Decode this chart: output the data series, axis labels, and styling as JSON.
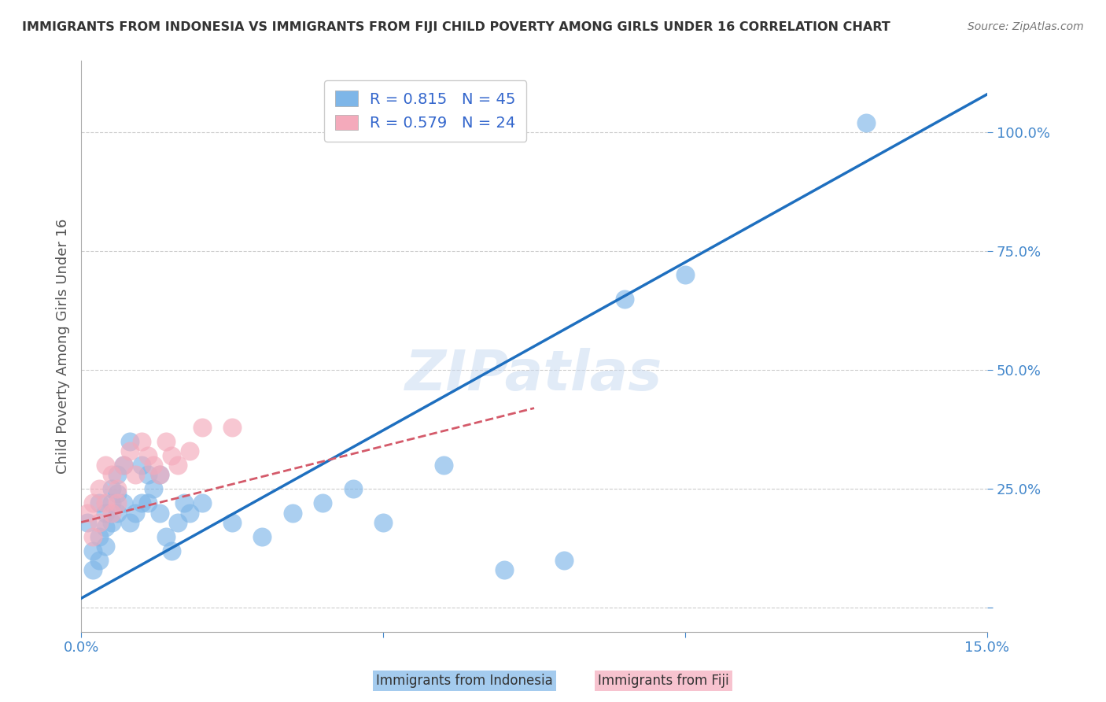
{
  "title": "IMMIGRANTS FROM INDONESIA VS IMMIGRANTS FROM FIJI CHILD POVERTY AMONG GIRLS UNDER 16 CORRELATION CHART",
  "source": "Source: ZipAtlas.com",
  "ylabel": "Child Poverty Among Girls Under 16",
  "xlabel": "",
  "xlim": [
    0.0,
    0.15
  ],
  "ylim": [
    -0.05,
    1.15
  ],
  "xticks": [
    0.0,
    0.05,
    0.1,
    0.15
  ],
  "xticklabels": [
    "0.0%",
    "",
    "",
    "15.0%"
  ],
  "ytick_positions": [
    0.0,
    0.25,
    0.5,
    0.75,
    1.0
  ],
  "yticklabels": [
    "",
    "25.0%",
    "50.0%",
    "75.0%",
    "100.0%"
  ],
  "indonesia_color": "#7EB6E8",
  "fiji_color": "#F4AABB",
  "indonesia_line_color": "#1E6FBF",
  "fiji_line_color": "#D45A6A",
  "legend_R_indonesia": "R = 0.815",
  "legend_N_indonesia": "N = 45",
  "legend_R_fiji": "R = 0.579",
  "legend_N_fiji": "N = 24",
  "watermark": "ZIPatlas",
  "legend_label_indonesia": "Immigrants from Indonesia",
  "legend_label_fiji": "Immigrants from Fiji",
  "indonesia_scatter": [
    [
      0.001,
      0.18
    ],
    [
      0.002,
      0.12
    ],
    [
      0.002,
      0.08
    ],
    [
      0.003,
      0.15
    ],
    [
      0.003,
      0.1
    ],
    [
      0.003,
      0.22
    ],
    [
      0.004,
      0.2
    ],
    [
      0.004,
      0.17
    ],
    [
      0.004,
      0.13
    ],
    [
      0.005,
      0.25
    ],
    [
      0.005,
      0.22
    ],
    [
      0.005,
      0.18
    ],
    [
      0.006,
      0.28
    ],
    [
      0.006,
      0.24
    ],
    [
      0.006,
      0.2
    ],
    [
      0.007,
      0.3
    ],
    [
      0.007,
      0.22
    ],
    [
      0.008,
      0.35
    ],
    [
      0.008,
      0.18
    ],
    [
      0.009,
      0.2
    ],
    [
      0.01,
      0.22
    ],
    [
      0.01,
      0.3
    ],
    [
      0.011,
      0.28
    ],
    [
      0.011,
      0.22
    ],
    [
      0.012,
      0.25
    ],
    [
      0.013,
      0.2
    ],
    [
      0.013,
      0.28
    ],
    [
      0.014,
      0.15
    ],
    [
      0.015,
      0.12
    ],
    [
      0.016,
      0.18
    ],
    [
      0.017,
      0.22
    ],
    [
      0.018,
      0.2
    ],
    [
      0.02,
      0.22
    ],
    [
      0.025,
      0.18
    ],
    [
      0.03,
      0.15
    ],
    [
      0.035,
      0.2
    ],
    [
      0.04,
      0.22
    ],
    [
      0.045,
      0.25
    ],
    [
      0.05,
      0.18
    ],
    [
      0.06,
      0.3
    ],
    [
      0.07,
      0.08
    ],
    [
      0.08,
      0.1
    ],
    [
      0.09,
      0.65
    ],
    [
      0.1,
      0.7
    ],
    [
      0.13,
      1.02
    ]
  ],
  "fiji_scatter": [
    [
      0.001,
      0.2
    ],
    [
      0.002,
      0.15
    ],
    [
      0.002,
      0.22
    ],
    [
      0.003,
      0.18
    ],
    [
      0.003,
      0.25
    ],
    [
      0.004,
      0.22
    ],
    [
      0.004,
      0.3
    ],
    [
      0.005,
      0.2
    ],
    [
      0.005,
      0.28
    ],
    [
      0.006,
      0.25
    ],
    [
      0.006,
      0.22
    ],
    [
      0.007,
      0.3
    ],
    [
      0.008,
      0.33
    ],
    [
      0.009,
      0.28
    ],
    [
      0.01,
      0.35
    ],
    [
      0.011,
      0.32
    ],
    [
      0.012,
      0.3
    ],
    [
      0.013,
      0.28
    ],
    [
      0.014,
      0.35
    ],
    [
      0.015,
      0.32
    ],
    [
      0.016,
      0.3
    ],
    [
      0.018,
      0.33
    ],
    [
      0.02,
      0.38
    ],
    [
      0.025,
      0.38
    ]
  ],
  "indonesia_line_x": [
    0.0,
    0.15
  ],
  "indonesia_line_y": [
    0.02,
    1.08
  ],
  "fiji_line_x": [
    0.0,
    0.075
  ],
  "fiji_line_y": [
    0.18,
    0.42
  ],
  "background_color": "#FFFFFF",
  "grid_color": "#CCCCCC",
  "title_color": "#333333",
  "tick_color": "#4488CC",
  "axis_color": "#AAAAAA"
}
